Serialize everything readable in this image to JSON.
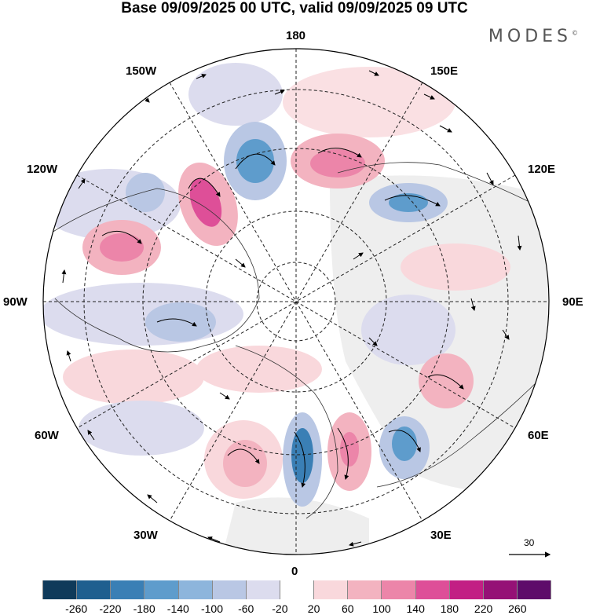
{
  "title": "Base 09/09/2025 00 UTC, valid 09/09/2025 09 UTC",
  "brand": "MODES",
  "brand_mark": "©",
  "longitude_labels": {
    "top": "180",
    "bottom": "0",
    "left": "90W",
    "right": "90E",
    "upper_left_1": "150W",
    "upper_left_2": "120W",
    "upper_right_1": "150E",
    "upper_right_2": "120E",
    "lower_left_1": "60W",
    "lower_left_2": "30W",
    "lower_right_1": "60E",
    "lower_right_2": "30E"
  },
  "reference_vector": {
    "label": "30"
  },
  "colorbar": {
    "colors": [
      "#0f3a5a",
      "#1f5f8f",
      "#3a7fb5",
      "#5e9ccc",
      "#8db5dc",
      "#b9c7e4",
      "#dcdcee",
      "#ffffff",
      "#f9d8dc",
      "#f3b3c0",
      "#ec85a9",
      "#de4f98",
      "#c21f84",
      "#951176",
      "#5e0c6a"
    ],
    "ticks": [
      "-260",
      "-220",
      "-180",
      "-140",
      "-100",
      "-60",
      "-20",
      "20",
      "60",
      "100",
      "140",
      "180",
      "220",
      "260"
    ]
  }
}
